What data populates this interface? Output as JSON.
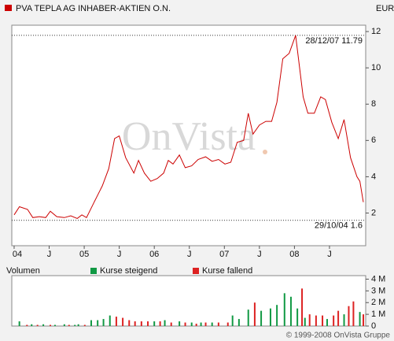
{
  "chart_data": [
    {
      "type": "line",
      "title": "PVA TEPLA AG INHABER-AKTIEN O.N.",
      "currency": "EUR",
      "watermark": "OnVista",
      "color": "#cc0000",
      "x": [
        0,
        0.9,
        2.3,
        3.2,
        4.3,
        5.4,
        6.2,
        7.3,
        8.6,
        9.7,
        10.8,
        11.6,
        12.4,
        13.7,
        15.1,
        16.2,
        17.2,
        18.0,
        19.1,
        20.5,
        21.3,
        22.3,
        23.4,
        24.5,
        25.6,
        26.4,
        27.2,
        28.3,
        29.3,
        30.4,
        31.5,
        32.8,
        33.9,
        35.0,
        36.1,
        37.1,
        38.2,
        39.3,
        40.1,
        40.9,
        42.0,
        43.1,
        44.1,
        45.0,
        46.0,
        47.1,
        48.2,
        49.5,
        50.3,
        51.4,
        52.5,
        53.3,
        54.4,
        55.5,
        56.5,
        57.6,
        58.7,
        59.2,
        59.8
      ],
      "values": [
        1.9,
        2.35,
        2.2,
        1.75,
        1.8,
        1.75,
        2.1,
        1.8,
        1.75,
        1.85,
        1.7,
        1.9,
        1.75,
        2.6,
        3.5,
        4.45,
        6.1,
        6.25,
        5.05,
        4.2,
        4.9,
        4.2,
        3.75,
        3.9,
        4.2,
        4.9,
        4.7,
        5.2,
        4.5,
        4.6,
        4.95,
        5.1,
        4.85,
        4.95,
        4.7,
        4.8,
        5.9,
        6.0,
        7.5,
        6.35,
        6.85,
        7.05,
        7.05,
        8.1,
        10.5,
        10.8,
        11.79,
        8.4,
        7.5,
        7.5,
        8.4,
        8.25,
        7.0,
        6.1,
        7.15,
        5.05,
        4.0,
        3.75,
        2.6
      ],
      "high": {
        "label": "28/12/07 11.79",
        "value": 11.79
      },
      "low": {
        "label": "29/10/04 1.6",
        "value": 1.6
      },
      "xlim": [
        -0.4,
        60.2
      ],
      "xticks": [
        {
          "value": 0,
          "label": "04"
        },
        {
          "value": 6,
          "label": "J"
        },
        {
          "value": 12,
          "label": "05"
        },
        {
          "value": 18,
          "label": "J"
        },
        {
          "value": 24,
          "label": "06"
        },
        {
          "value": 30,
          "label": "J"
        },
        {
          "value": 36,
          "label": "07"
        },
        {
          "value": 42,
          "label": "J"
        },
        {
          "value": 48,
          "label": "08"
        },
        {
          "value": 54,
          "label": "J"
        }
      ],
      "ylim": [
        0.2,
        12.35
      ],
      "yticks": [
        2,
        4,
        6,
        8,
        10,
        12
      ]
    },
    {
      "type": "bar",
      "ylabel": "Volumen",
      "xlim": [
        -0.4,
        60.2
      ],
      "ylim": [
        0,
        4.3
      ],
      "yticks": [
        0,
        {
          "value": 1,
          "label": "1 M"
        },
        {
          "value": 2,
          "label": "2 M"
        },
        {
          "value": 3,
          "label": "3 M"
        },
        {
          "value": 4,
          "label": "4 M"
        }
      ],
      "series": [
        {
          "name": "Kurse steigend",
          "color": "#119944",
          "x": [
            0.9,
            3.0,
            5.0,
            7.0,
            8.6,
            10.4,
            11.0,
            13.2,
            14.3,
            15.3,
            16.4,
            24.0,
            25.8,
            28.3,
            30.4,
            32.0,
            33.9,
            37.4,
            38.5,
            40.1,
            42.3,
            43.9,
            45.0,
            46.3,
            47.4,
            48.5,
            49.8,
            53.6,
            56.5,
            59.2
          ],
          "values": [
            0.4,
            0.15,
            0.15,
            0.1,
            0.15,
            0.1,
            0.15,
            0.5,
            0.5,
            0.6,
            0.9,
            0.4,
            0.5,
            0.4,
            0.3,
            0.3,
            0.3,
            0.9,
            0.6,
            1.4,
            1.3,
            1.5,
            1.8,
            2.8,
            2.5,
            1.5,
            0.7,
            0.6,
            1.0,
            1.2
          ]
        },
        {
          "name": "Kurse fallend",
          "color": "#dd2222",
          "x": [
            2.2,
            4.0,
            6.2,
            9.4,
            12.1,
            17.5,
            18.6,
            19.7,
            20.7,
            21.8,
            22.9,
            25.0,
            26.9,
            29.3,
            31.2,
            32.8,
            35.0,
            36.6,
            41.2,
            49.3,
            50.6,
            51.7,
            52.8,
            54.7,
            55.5,
            57.3,
            58.1,
            59.8
          ],
          "values": [
            0.1,
            0.1,
            0.1,
            0.1,
            0.1,
            0.8,
            0.7,
            0.5,
            0.4,
            0.4,
            0.4,
            0.4,
            0.3,
            0.3,
            0.2,
            0.3,
            0.3,
            0.3,
            2.0,
            3.2,
            1.0,
            0.9,
            0.9,
            0.9,
            1.3,
            1.7,
            2.1,
            1.0
          ]
        }
      ]
    },
    {
      "type": "footer",
      "text": "© 1999-2008 OnVista Gruppe"
    }
  ]
}
